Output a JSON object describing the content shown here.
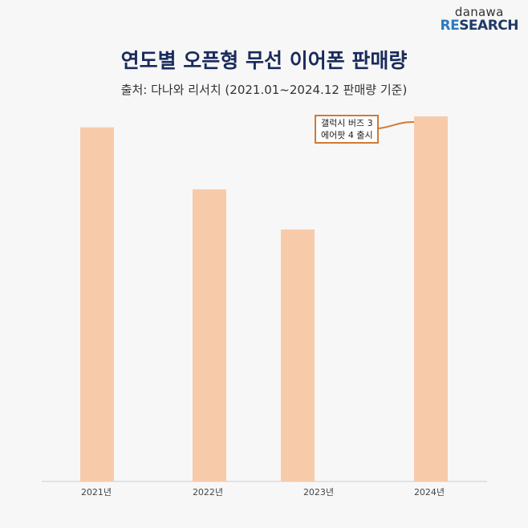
{
  "logo": {
    "line1": "danawa",
    "line2a": "RE",
    "line2b": "SEARCH"
  },
  "chart_data": {
    "type": "bar",
    "title": "연도별 오픈형 무선 이어폰 판매량",
    "subtitle": "출처: 다나와 리서치 (2021.01~2024.12 판매량 기준)",
    "categories": [
      "2021년",
      "2022년",
      "2023년",
      "2024년"
    ],
    "values": [
      97,
      80,
      69,
      100
    ],
    "ylim": [
      0,
      100
    ],
    "xlabel": "",
    "ylabel": "",
    "grid": false,
    "bar_color": "#f7cbaa",
    "annotation": {
      "category": "2024년",
      "lines": [
        "갤럭시 버즈 3",
        "에어팟 4 출시"
      ],
      "color": "#d07a35"
    }
  }
}
